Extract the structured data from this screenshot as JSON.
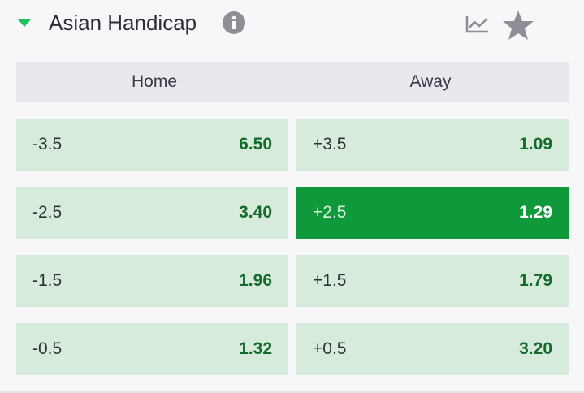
{
  "header": {
    "title": "Asian Handicap"
  },
  "table": {
    "columns": [
      "Home",
      "Away"
    ],
    "rows": [
      {
        "home": {
          "line": "-3.5",
          "odds": "6.50"
        },
        "away": {
          "line": "+3.5",
          "odds": "1.09"
        }
      },
      {
        "home": {
          "line": "-2.5",
          "odds": "3.40"
        },
        "away": {
          "line": "+2.5",
          "odds": "1.29"
        }
      },
      {
        "home": {
          "line": "-1.5",
          "odds": "1.96"
        },
        "away": {
          "line": "+1.5",
          "odds": "1.79"
        }
      },
      {
        "home": {
          "line": "-0.5",
          "odds": "1.32"
        },
        "away": {
          "line": "+0.5",
          "odds": "3.20"
        }
      }
    ]
  }
}
